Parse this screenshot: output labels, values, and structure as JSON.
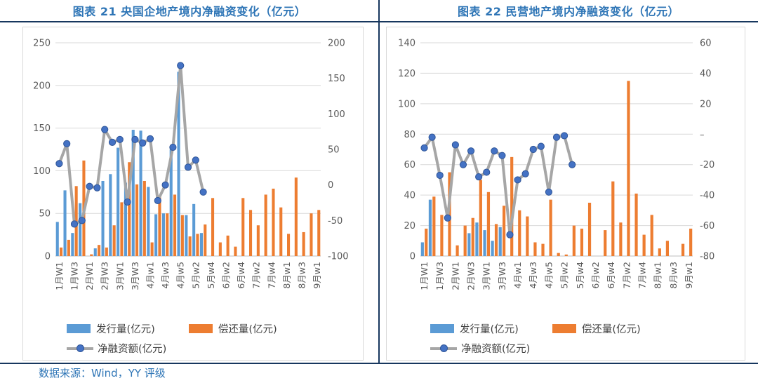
{
  "footer": {
    "source": "数据来源：Wind，YY 评级"
  },
  "colors": {
    "title": "#2E75B6",
    "rule": "#17375E",
    "panel_border": "#D9D9D9",
    "grid": "#D9D9D9",
    "axis_text": "#595959",
    "issuance_bar": "#5B9BD5",
    "repayment_bar": "#ED7D31",
    "net_line": "#A6A6A6",
    "net_marker": "#4472C4",
    "footer_text": "#2E75B6"
  },
  "chart_data": [
    {
      "type": "combo_bar_line",
      "title": "图表 21 央国企地产境内净融资变化（亿元）",
      "categories": [
        "1月W1",
        "1月W2",
        "1月W3",
        "1月W4",
        "2月W1",
        "2月W2",
        "2月W3",
        "2月W4",
        "3月W1",
        "3月W2",
        "3月W3",
        "3月W4",
        "4月w1",
        "4月w2",
        "4月w3",
        "4月w4",
        "4月w5",
        "5月w1",
        "5月w2",
        "5月w3",
        "5月w4",
        "6月w1",
        "6月w2",
        "6月w3",
        "6月w4",
        "7月w1",
        "7月w2",
        "7月w3",
        "7月w4",
        "7月w5",
        "8月w1",
        "8月w2",
        "8月w3",
        "8月w4",
        "9月w1"
      ],
      "series": [
        {
          "name": "发行量(亿元)",
          "type": "bar",
          "axis": "left",
          "color": "#5B9BD5",
          "values": [
            40,
            77,
            27,
            62,
            0,
            9,
            88,
            96,
            127,
            86,
            148,
            147,
            81,
            49,
            50,
            125,
            216,
            48,
            61,
            27,
            0,
            0,
            0,
            0,
            0,
            0,
            0,
            0,
            0,
            0,
            0,
            0,
            0,
            0,
            0
          ]
        },
        {
          "name": "偿还量(亿元)",
          "type": "bar",
          "axis": "left",
          "color": "#ED7D31",
          "values": [
            10,
            19,
            82,
            112,
            2,
            13,
            10,
            36,
            63,
            110,
            84,
            88,
            16,
            71,
            50,
            72,
            48,
            23,
            26,
            37,
            68,
            16,
            24,
            11,
            68,
            54,
            36,
            72,
            79,
            57,
            26,
            92,
            28,
            50,
            54
          ]
        },
        {
          "name": "净融资额(亿元)",
          "type": "line",
          "axis": "right",
          "color": "#A6A6A6",
          "marker_color": "#4472C4",
          "values": [
            30,
            58,
            -55,
            -50,
            -2,
            -4,
            78,
            60,
            64,
            -24,
            64,
            59,
            65,
            -22,
            0,
            53,
            168,
            25,
            35,
            -10
          ]
        }
      ],
      "left_axis": {
        "min": 0,
        "max": 250,
        "step": 50,
        "zero_label": "0"
      },
      "right_axis": {
        "min": -100,
        "max": 200,
        "step": 50,
        "zero_label": "0"
      },
      "x_label_every": 2,
      "grid": true,
      "legend_position": "bottom"
    },
    {
      "type": "combo_bar_line",
      "title": "图表 22 民营地产境内净融资变化（亿元）",
      "categories": [
        "1月W1",
        "1月W2",
        "1月W3",
        "1月W4",
        "2月W1",
        "2月W2",
        "2月W3",
        "2月W4",
        "3月W1",
        "3月W2",
        "3月W3",
        "3月W4",
        "4月w1",
        "4月w2",
        "4月w3",
        "4月w4",
        "4月w5",
        "5月w1",
        "5月w2",
        "5月w3",
        "5月w4",
        "6月w1",
        "6月w2",
        "6月w3",
        "6月w4",
        "7月w1",
        "7月w2",
        "7月w3",
        "7月w4",
        "7月w5",
        "8月w1",
        "8月w2",
        "8月w3",
        "8月w4",
        "9月w1"
      ],
      "series": [
        {
          "name": "发行量(亿元)",
          "type": "bar",
          "axis": "left",
          "color": "#5B9BD5",
          "values": [
            9,
            37,
            0,
            0,
            0,
            0,
            15,
            22,
            17,
            10,
            19,
            0,
            0,
            0,
            0,
            0,
            0,
            0,
            0,
            0,
            0,
            0,
            0,
            0,
            0,
            0,
            0,
            0,
            0,
            0,
            0,
            0,
            0,
            0,
            0
          ]
        },
        {
          "name": "偿还量(亿元)",
          "type": "bar",
          "axis": "left",
          "color": "#ED7D31",
          "values": [
            18,
            39,
            27,
            55,
            7,
            20,
            25,
            50,
            42,
            21,
            33,
            65,
            30,
            26,
            9,
            8,
            37,
            2,
            1,
            20,
            18,
            35,
            0,
            17,
            49,
            22,
            115,
            41,
            14,
            27,
            5,
            10,
            0,
            8,
            18
          ]
        },
        {
          "name": "净融资额(亿元)",
          "type": "line",
          "axis": "right",
          "color": "#A6A6A6",
          "marker_color": "#4472C4",
          "values": [
            -9,
            -2,
            -27,
            -55,
            -7,
            -20,
            -11,
            -28,
            -25,
            -11,
            -14,
            -66,
            -30,
            -26,
            -10,
            -8,
            -38,
            -2,
            -1,
            -20
          ]
        }
      ],
      "left_axis": {
        "min": 0,
        "max": 140,
        "step": 20,
        "zero_label": "0"
      },
      "right_axis": {
        "min": -80,
        "max": 60,
        "step": 20,
        "zero_label": "–"
      },
      "x_label_every": 2,
      "grid": true,
      "legend_position": "bottom"
    }
  ]
}
